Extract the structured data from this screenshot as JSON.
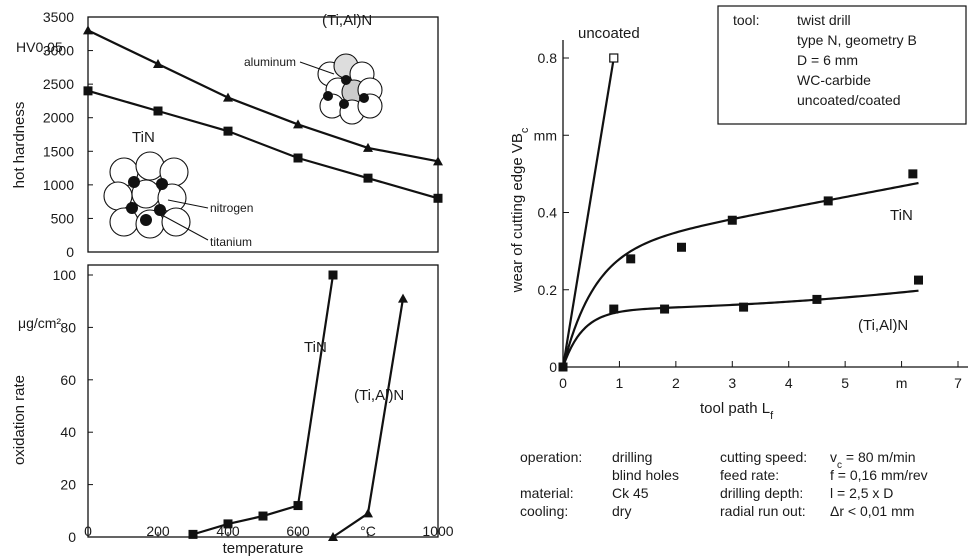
{
  "chart_data": [
    {
      "type": "line",
      "panel": "hot-hardness",
      "xlim": [
        0,
        1000
      ],
      "ylim": [
        0,
        3500
      ],
      "yticks": [
        "0",
        "500",
        "1000",
        "1500",
        "2000",
        "2500",
        "3000",
        "3500"
      ],
      "yunit": "HV0,05",
      "ylabel": "hot hardness",
      "series": [
        {
          "name": "(Ti,Al)N",
          "marker": "triangle",
          "x": [
            0,
            200,
            400,
            600,
            800,
            1000
          ],
          "y": [
            3300,
            2800,
            2300,
            1900,
            1550,
            1350
          ]
        },
        {
          "name": "TiN",
          "marker": "square",
          "x": [
            0,
            200,
            400,
            600,
            800,
            1000
          ],
          "y": [
            2400,
            2100,
            1800,
            1400,
            1100,
            800
          ]
        }
      ],
      "labels": {
        "aluminum": "aluminum",
        "nitrogen": "nitrogen",
        "titanium": "titanium"
      }
    },
    {
      "type": "line",
      "panel": "oxidation-rate",
      "xlim": [
        0,
        1000
      ],
      "ylim": [
        0,
        100
      ],
      "xticks": [
        "0",
        "200",
        "400",
        "600",
        "°C",
        "1000"
      ],
      "yticks": [
        "0",
        "20",
        "40",
        "60",
        "80",
        "100"
      ],
      "yunit": "μg/cm²",
      "ylabel": "oxidation rate",
      "xlabel": "temperature",
      "series": [
        {
          "name": "TiN",
          "marker": "square",
          "x": [
            300,
            400,
            500,
            600,
            700
          ],
          "y": [
            1,
            5,
            8,
            12,
            100
          ]
        },
        {
          "name": "(Ti,Al)N",
          "marker": "triangle",
          "x": [
            700,
            800,
            900
          ],
          "y": [
            0,
            9,
            91
          ]
        }
      ]
    },
    {
      "type": "line",
      "panel": "tool-wear",
      "xlim": [
        0,
        7
      ],
      "ylim": [
        0,
        0.8
      ],
      "xticks": [
        "0",
        "1",
        "2",
        "3",
        "4",
        "5",
        "m",
        "7"
      ],
      "yticks": [
        "0",
        "0.2",
        "0.4",
        "mm",
        "0.8"
      ],
      "ylabel": "wear of cutting edge  VB",
      "ylabel_sub": "c",
      "xlabel": "tool path  L",
      "xlabel_sub": "f",
      "series": [
        {
          "name": "uncoated",
          "marker": "square-open",
          "x": [
            0,
            0.9
          ],
          "y": [
            0,
            0.8
          ]
        },
        {
          "name": "TiN",
          "marker": "square",
          "x": [
            0,
            1.2,
            2.1,
            3.0,
            4.7,
            6.2
          ],
          "y": [
            0,
            0.28,
            0.31,
            0.38,
            0.43,
            0.5
          ]
        },
        {
          "name": "(Ti,Al)N",
          "marker": "square",
          "x": [
            0,
            0.9,
            1.8,
            3.2,
            4.5,
            6.3
          ],
          "y": [
            0,
            0.15,
            0.15,
            0.155,
            0.175,
            0.225
          ]
        }
      ]
    }
  ],
  "info_box": {
    "tool_key": "tool:",
    "lines": [
      "twist drill",
      "type N, geometry B",
      "D = 6 mm",
      "WC-carbide",
      "uncoated/coated"
    ]
  },
  "conditions": {
    "left_keys": [
      "operation:",
      "",
      "material:",
      "cooling:"
    ],
    "left_vals": [
      "drilling",
      "blind holes",
      "Ck 45",
      "dry"
    ],
    "right_keys": [
      "cutting speed:",
      "feed rate:",
      "drilling depth:",
      "radial run out:"
    ],
    "right_vals": [
      "v",
      "f = 0,16 mm/rev",
      "l = 2,5 x D",
      "Δr < 0,01 mm"
    ],
    "right_val0_sub": "c",
    "right_val0_rest": " = 80 m/min"
  }
}
